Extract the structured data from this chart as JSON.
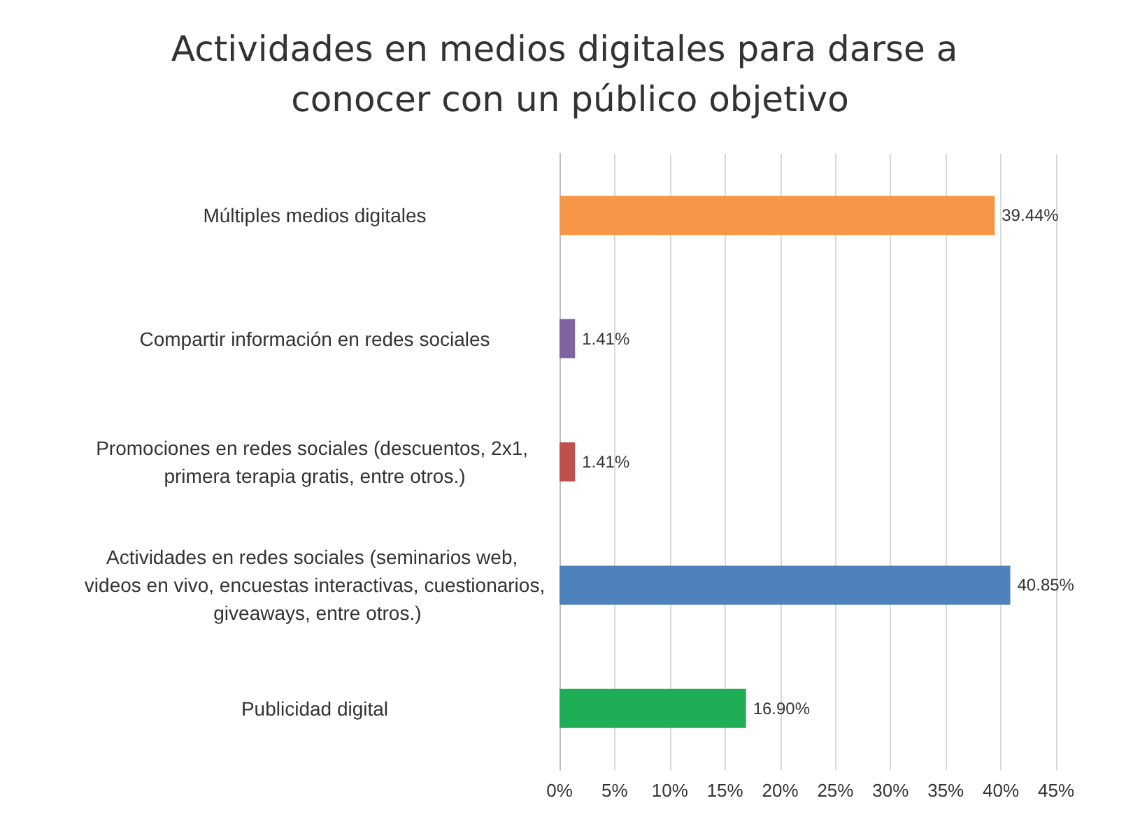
{
  "chart_data": {
    "type": "bar",
    "orientation": "horizontal",
    "title": "Actividades en medios digitales para darse a conocer con un público objetivo",
    "categories": [
      "Múltiples medios digitales",
      "Compartir información en redes sociales",
      "Promociones en redes sociales (descuentos, 2x1, primera terapia gratis, entre otros.)",
      "Actividades en redes sociales (seminarios web, videos en vivo, encuestas interactivas, cuestionarios, giveaways, entre otros.)",
      "Publicidad digital"
    ],
    "values": [
      39.44,
      1.41,
      1.41,
      40.85,
      16.9
    ],
    "colors": [
      "#f79646",
      "#8064a2",
      "#c0504d",
      "#4f81bd",
      "#1fae55"
    ],
    "value_labels": [
      "39.44%",
      "1.41%",
      "1.41%",
      "40.85%",
      "16.90%"
    ],
    "xlim": [
      0,
      45
    ],
    "xticks": [
      {
        "value": 0,
        "label": "0%"
      },
      {
        "value": 5,
        "label": "5%"
      },
      {
        "value": 10,
        "label": "10%"
      },
      {
        "value": 15,
        "label": "15%"
      },
      {
        "value": 20,
        "label": "20%"
      },
      {
        "value": 25,
        "label": "25%"
      },
      {
        "value": 30,
        "label": "30%"
      },
      {
        "value": 35,
        "label": "35%"
      },
      {
        "value": 40,
        "label": "40%"
      },
      {
        "value": 45,
        "label": "45%"
      }
    ],
    "grid": "x"
  }
}
